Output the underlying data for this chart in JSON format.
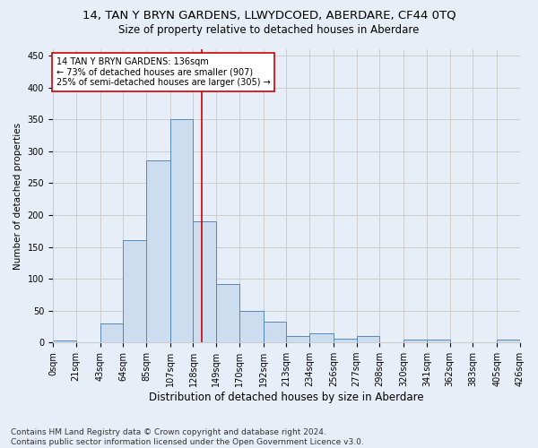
{
  "title1": "14, TAN Y BRYN GARDENS, LLWYDCOED, ABERDARE, CF44 0TQ",
  "title2": "Size of property relative to detached houses in Aberdare",
  "xlabel": "Distribution of detached houses by size in Aberdare",
  "ylabel": "Number of detached properties",
  "footer": "Contains HM Land Registry data © Crown copyright and database right 2024.\nContains public sector information licensed under the Open Government Licence v3.0.",
  "bin_edges": [
    0,
    21,
    43,
    64,
    85,
    107,
    128,
    149,
    170,
    192,
    213,
    234,
    256,
    277,
    298,
    320,
    341,
    362,
    383,
    405,
    426
  ],
  "bar_heights": [
    3,
    0,
    30,
    160,
    285,
    350,
    190,
    92,
    50,
    32,
    10,
    15,
    6,
    10,
    0,
    5,
    5,
    0,
    0,
    5
  ],
  "bar_color": "#ccddf0",
  "bar_edge_color": "#5588bb",
  "vline_x": 136,
  "vline_color": "#cc0000",
  "annotation_text": "14 TAN Y BRYN GARDENS: 136sqm\n← 73% of detached houses are smaller (907)\n25% of semi-detached houses are larger (305) →",
  "annotation_box_color": "#ffffff",
  "annotation_box_edge_color": "#cc0000",
  "ylim": [
    0,
    460
  ],
  "yticks": [
    0,
    50,
    100,
    150,
    200,
    250,
    300,
    350,
    400,
    450
  ],
  "grid_color": "#cccccc",
  "bg_color": "#e8eef8",
  "plot_bg_color": "#e8eef8",
  "title1_fontsize": 9.5,
  "title2_fontsize": 8.5,
  "xlabel_fontsize": 8.5,
  "ylabel_fontsize": 7.5,
  "tick_fontsize": 7,
  "annotation_fontsize": 7,
  "footer_fontsize": 6.5
}
